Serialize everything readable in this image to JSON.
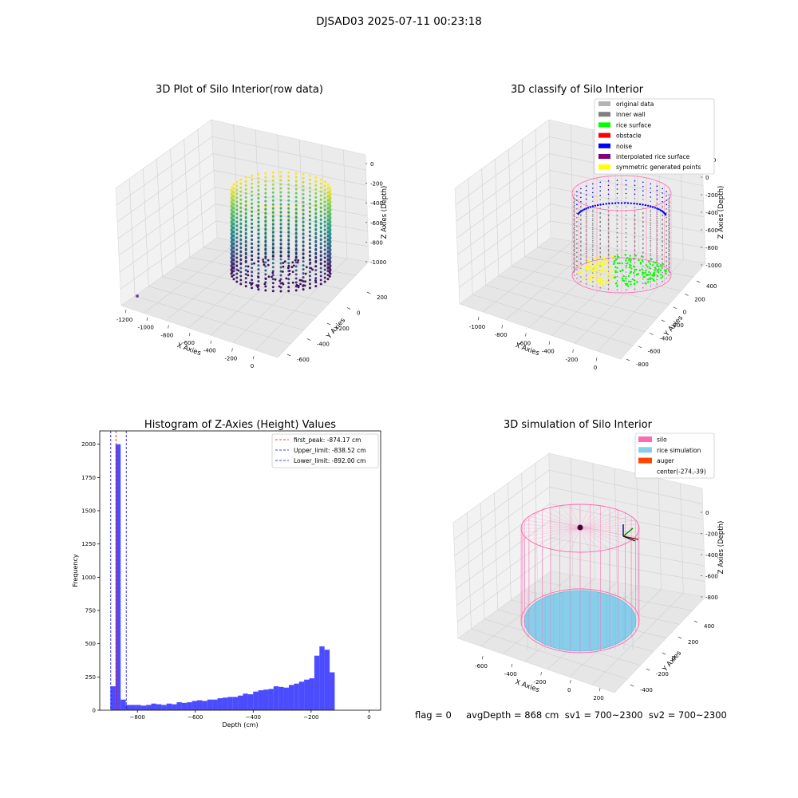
{
  "figure_title": "DJSAD03 2025-07-11 00:23:18",
  "footer": "flag = 0     avgDepth = 868 cm  sv1 = 700~2300  sv2 = 700~2300",
  "colors": {
    "rice_surface": "#00ff00",
    "inner_wall": "#808080",
    "original_data": "#b3b3b3",
    "obstacle": "#ff0000",
    "noise": "#0000ff",
    "interpolated": "#800080",
    "symmetric": "#ffff00",
    "silo": "#ff69b4",
    "rice_simulation": "#87ceeb",
    "auger": "#ff4500",
    "histogram": "#0000ff"
  },
  "chart_data": [
    {
      "type": "scatter",
      "title": "3D Plot of Silo Interior(row data)",
      "xlabel": "X Axies",
      "ylabel": "Y Axies",
      "zlabel": "Z Axies (Depth)",
      "x_ticks": [
        "-1200",
        "-1000",
        "-800",
        "-600",
        "-400",
        "-200",
        "0"
      ],
      "y_ticks": [
        "200",
        "0",
        "-200",
        "-400",
        "-600"
      ],
      "z_ticks": [
        "0",
        "-200",
        "-400",
        "-600",
        "-800",
        "-1000"
      ],
      "colormap": "viridis"
    },
    {
      "type": "scatter",
      "title": "3D classify of Silo Interior",
      "xlabel": "X Axies",
      "ylabel": "Y Axies",
      "zlabel": "Z Axies (Depth)",
      "x_ticks": [
        "-1000",
        "-800",
        "-600",
        "-400",
        "-200",
        "0"
      ],
      "y_ticks": [
        "400",
        "200",
        "0",
        "-200",
        "-400",
        "-600",
        "-800"
      ],
      "z_ticks": [
        "200",
        "0",
        "-200",
        "-400",
        "-600",
        "-800",
        "-1000"
      ],
      "legend": [
        {
          "label": "original data",
          "color": "#b3b3b3"
        },
        {
          "label": "inner wall",
          "color": "#808080"
        },
        {
          "label": "rice surface",
          "color": "#00ff00"
        },
        {
          "label": "obstacle",
          "color": "#ff0000"
        },
        {
          "label": "noise",
          "color": "#0000ff"
        },
        {
          "label": "interpolated rice surface",
          "color": "#800080"
        },
        {
          "label": "symmetric generated points",
          "color": "#ffff00"
        }
      ]
    },
    {
      "type": "bar",
      "title": "Histogram of Z-Axies (Height) Values",
      "xlabel": "Depth (cm)",
      "ylabel": "Frequency",
      "xlim": [
        -930,
        40
      ],
      "ylim": [
        0,
        2100
      ],
      "x_ticks": [
        -800,
        -600,
        -400,
        -200,
        0
      ],
      "y_ticks": [
        0,
        250,
        500,
        750,
        1000,
        1250,
        1500,
        1750,
        2000
      ],
      "bin_edges_start": -893,
      "bin_width": 17.6,
      "values": [
        180,
        2000,
        80,
        40,
        40,
        40,
        35,
        40,
        50,
        45,
        40,
        50,
        45,
        60,
        55,
        60,
        70,
        75,
        70,
        80,
        80,
        90,
        95,
        100,
        100,
        110,
        125,
        120,
        140,
        150,
        155,
        160,
        180,
        175,
        170,
        190,
        200,
        215,
        230,
        240,
        410,
        480,
        455,
        285
      ],
      "lines": [
        {
          "label": "first_peak: -874.17 cm",
          "x": -874.17,
          "color": "#ff0000"
        },
        {
          "label": "Upper_limit: -838.52 cm",
          "x": -838.52,
          "color": "#0000ff"
        },
        {
          "label": "Lower_limit: -892.00 cm",
          "x": -892.0,
          "color": "#0000ff"
        }
      ]
    },
    {
      "type": "scatter",
      "title": "3D simulation of Silo Interior",
      "xlabel": "X Axies",
      "ylabel": "Y Axies",
      "zlabel": "Z Axies (Depth)",
      "x_ticks": [
        "-600",
        "-400",
        "-200",
        "0",
        "200"
      ],
      "y_ticks": [
        "400",
        "200",
        "0",
        "-200",
        "-400"
      ],
      "z_ticks": [
        "0",
        "-200",
        "-400",
        "-600",
        "-800"
      ],
      "legend": [
        {
          "label": "silo",
          "color": "#ff69b4"
        },
        {
          "label": "rice simulation",
          "color": "#87ceeb"
        },
        {
          "label": "auger",
          "color": "#ff4500"
        },
        {
          "label": "center(-274,-39)",
          "color": ""
        }
      ]
    }
  ]
}
